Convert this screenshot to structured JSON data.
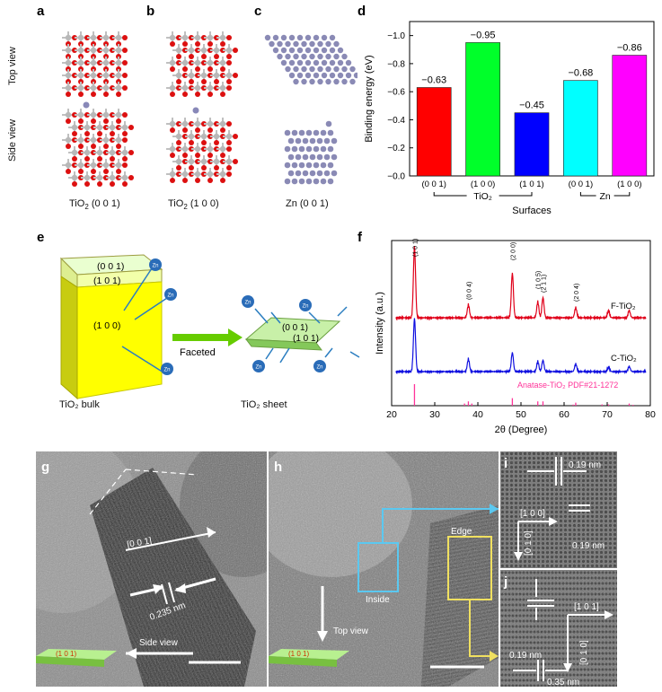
{
  "panels": {
    "a": {
      "letter": "a",
      "label": "TiO",
      "sub": "2",
      "tail": " (0 0 1)"
    },
    "b": {
      "letter": "b",
      "label": "TiO",
      "sub": "2",
      "tail": " (1 0 0)"
    },
    "c": {
      "letter": "c",
      "label": "Zn (0 0 1)"
    },
    "d": {
      "letter": "d"
    },
    "e": {
      "letter": "e"
    },
    "f": {
      "letter": "f"
    },
    "g": {
      "letter": "g"
    },
    "h": {
      "letter": "h"
    },
    "i": {
      "letter": "i"
    },
    "j": {
      "letter": "j"
    }
  },
  "views": {
    "top": "Top view",
    "side": "Side view"
  },
  "colors": {
    "red": "#ff0000",
    "green": "#00ff2a",
    "blue": "#0000ff",
    "cyan": "#00ffff",
    "magenta": "#ff00ff",
    "f_tio2": "#e0001a",
    "c_tio2": "#1010e0",
    "ref": "#ff3399"
  },
  "chart_data": [
    {
      "type": "bar",
      "ylabel": "Binding energy (eV)",
      "xlabel": "Surfaces",
      "categories": [
        "(0 0 1)",
        "(1 0 0)",
        "(1 0 1)",
        "(0 0 1)",
        "(1 0 0)"
      ],
      "values": [
        -0.63,
        -0.95,
        -0.45,
        -0.68,
        -0.86
      ],
      "value_labels": [
        "−0.63",
        "−0.95",
        "−0.45",
        "−0.68",
        "−0.86"
      ],
      "group_labels": [
        "TiO₂",
        "Zn"
      ],
      "ylim": [
        0.0,
        -1.1
      ],
      "yticks": [
        "−1.0",
        "−0.8",
        "−0.6",
        "−0.4",
        "−0.2",
        "−0.0"
      ],
      "ytick_values": [
        -1.0,
        -0.8,
        -0.6,
        -0.4,
        -0.2,
        0.0
      ],
      "axis_reversed": true
    },
    {
      "type": "line",
      "xlabel": "2θ (Degree)",
      "ylabel": "Intensity (a.u.)",
      "xlim": [
        20,
        80
      ],
      "xticks": [
        20,
        30,
        40,
        50,
        60,
        70,
        80
      ],
      "series": [
        {
          "name": "F-TiO₂",
          "peaks": [
            [
              25.3,
              1.0
            ],
            [
              37.8,
              0.18
            ],
            [
              48.0,
              0.62
            ],
            [
              53.9,
              0.22
            ],
            [
              55.1,
              0.28
            ],
            [
              62.7,
              0.14
            ],
            [
              70.3,
              0.1
            ],
            [
              75.1,
              0.1
            ]
          ]
        },
        {
          "name": "C-TiO₂",
          "peaks": [
            [
              25.3,
              0.85
            ],
            [
              37.8,
              0.2
            ],
            [
              48.0,
              0.3
            ],
            [
              53.9,
              0.16
            ],
            [
              55.1,
              0.18
            ],
            [
              62.7,
              0.12
            ],
            [
              70.3,
              0.07
            ],
            [
              75.1,
              0.08
            ]
          ]
        }
      ],
      "peak_labels": [
        "(1 0 1)",
        "(0 0 4)",
        "(2 0 0)",
        "(1 0 5)",
        "(2 1 1)",
        "(2 0 4)"
      ],
      "reference": {
        "name": "Anatase-TiO₂  PDF#21-1272",
        "sticks": [
          [
            25.3,
            1.0
          ],
          [
            36.9,
            0.1
          ],
          [
            37.8,
            0.2
          ],
          [
            38.6,
            0.1
          ],
          [
            48.0,
            0.35
          ],
          [
            53.9,
            0.2
          ],
          [
            55.1,
            0.2
          ],
          [
            62.1,
            0.05
          ],
          [
            62.7,
            0.14
          ],
          [
            68.8,
            0.06
          ],
          [
            70.3,
            0.06
          ],
          [
            75.1,
            0.1
          ],
          [
            76.0,
            0.04
          ]
        ]
      }
    }
  ],
  "e": {
    "bulk_faces": [
      "(0 0 1)",
      "(1 0 1)",
      "(1 0 0)"
    ],
    "sheet_faces": [
      "(0 0 1)",
      "(1 0 1)"
    ],
    "arrow_label": "Faceted",
    "atom": "Zn",
    "bulk_caption": "TiO₂ bulk",
    "sheet_caption": "TiO₂ sheet"
  },
  "tem": {
    "g_facet": "[0 0 1]",
    "g_spacing": "0.235 nm",
    "g_view": "Side view",
    "inset_face": "(1 0 1)",
    "h_edge": "Edge",
    "h_inside": "Inside",
    "h_view": "Top view",
    "i_spacing_top": "0.19 nm",
    "i_dir": "[1 0 0]",
    "i_dir_v": "[0 1 0]",
    "i_spacing_bot": "0.19 nm",
    "j_dir": "[1 0 1]",
    "j_dir_v": "[0 1 0]",
    "j_spacing1": "0.19 nm",
    "j_spacing2": "0.35 nm"
  }
}
